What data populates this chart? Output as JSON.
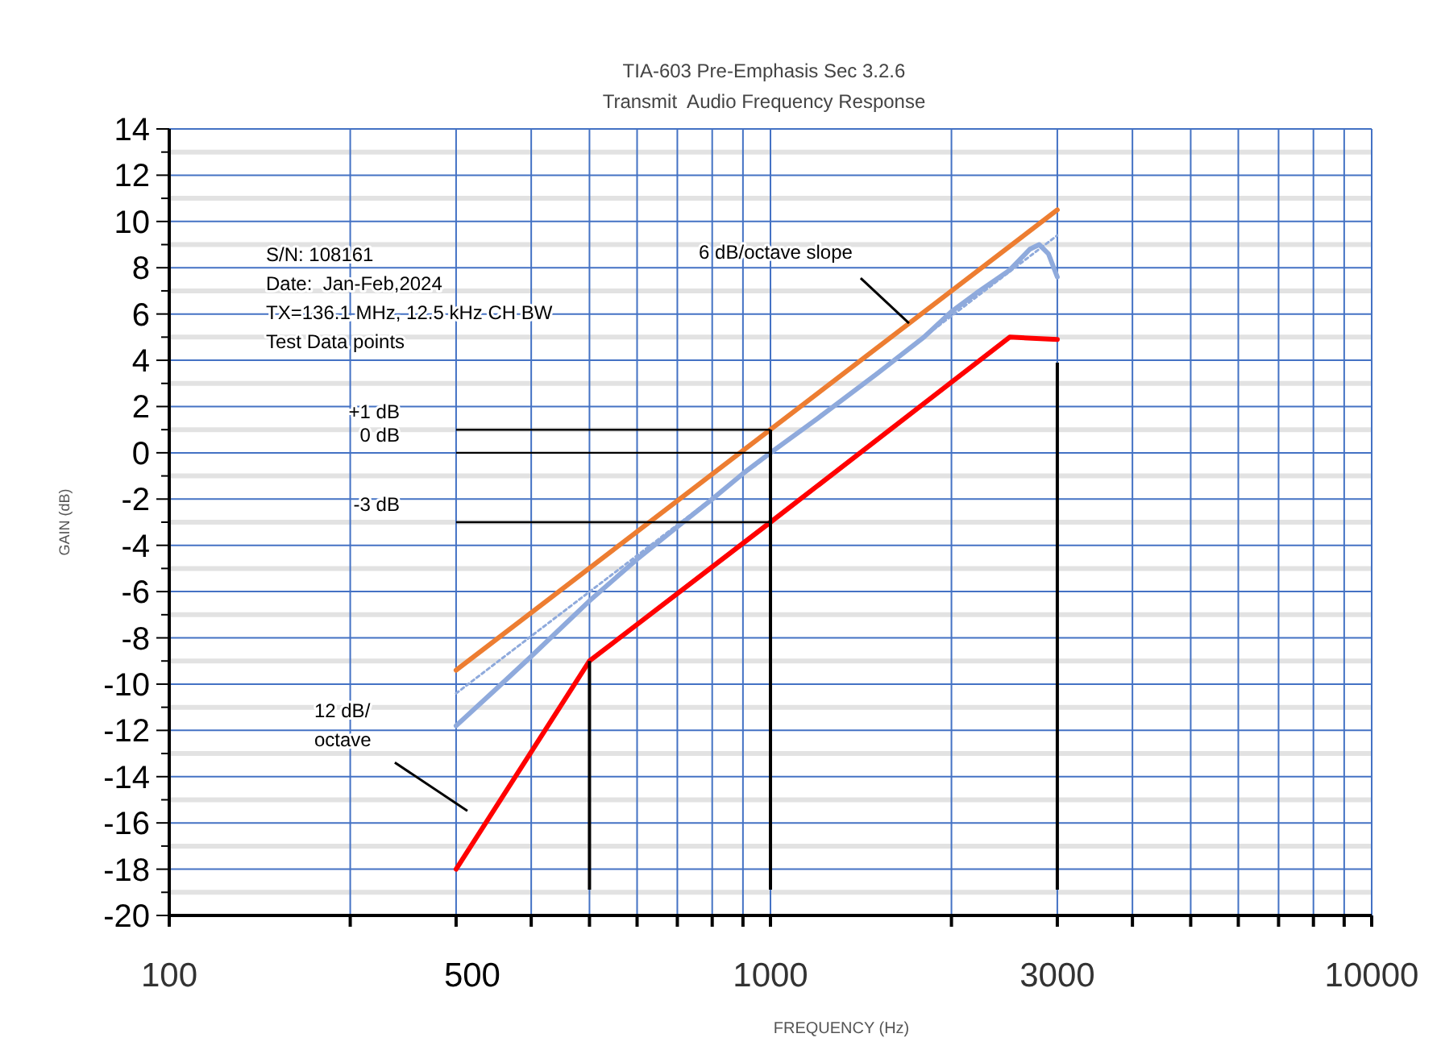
{
  "chart_data": {
    "type": "line",
    "title": "TIA-603 Pre-Emphasis Sec 3.2.6",
    "subtitle": "Transmit  Audio Frequency Response",
    "xlabel": "FREQUENCY (Hz)",
    "ylabel": "GAIN (dB)",
    "log": "x",
    "grid": true,
    "xlim": [
      100,
      10000
    ],
    "xticks": [
      100,
      {
        "value": 200,
        "label": null
      },
      {
        "value": 300,
        "label": null
      },
      {
        "value": 400,
        "label": null
      },
      {
        "value": 500,
        "label": null
      },
      {
        "value": 600,
        "label": null
      },
      {
        "value": 700,
        "label": null
      },
      {
        "value": 800,
        "label": null
      },
      {
        "value": 900,
        "label": null
      },
      1000,
      {
        "value": 2000,
        "label": null
      },
      {
        "value": 3000,
        "label": "3000"
      },
      {
        "value": 4000,
        "label": null
      },
      {
        "value": 5000,
        "label": null
      },
      {
        "value": 6000,
        "label": null
      },
      {
        "value": 7000,
        "label": null
      },
      {
        "value": 8000,
        "label": null
      },
      {
        "value": 9000,
        "label": null
      },
      10000
    ],
    "ylim": [
      -20,
      14
    ],
    "yticks": [
      -20,
      {
        "value": -19,
        "label": null
      },
      -18,
      {
        "value": -17,
        "label": null
      },
      -16,
      {
        "value": -15,
        "label": null
      },
      -14,
      {
        "value": -13,
        "label": null
      },
      -12,
      {
        "value": -11,
        "label": null
      },
      -10,
      {
        "value": -9,
        "label": null
      },
      -8,
      {
        "value": -7,
        "label": null
      },
      -6,
      {
        "value": -5,
        "label": null
      },
      -4,
      {
        "value": -3,
        "label": null
      },
      -2,
      {
        "value": -1,
        "label": null
      },
      0,
      {
        "value": 1,
        "label": null
      },
      2,
      {
        "value": 3,
        "label": null
      },
      4,
      {
        "value": 5,
        "label": null
      },
      6,
      {
        "value": 7,
        "label": null
      },
      8,
      {
        "value": 9,
        "label": null
      },
      10,
      {
        "value": 11,
        "label": null
      },
      12,
      {
        "value": 13,
        "label": null
      },
      14
    ],
    "series": [
      {
        "color": "#ed7d31",
        "line_style": "solid",
        "x": [
          300,
          3000
        ],
        "values": [
          -9.4,
          10.5
        ]
      },
      {
        "color": "#8faadc",
        "line_style": "solid",
        "x": [
          300,
          350,
          400,
          500,
          600,
          700,
          800,
          900,
          1000,
          1200,
          1500,
          1800,
          2000,
          2200,
          2500,
          2700,
          2800,
          2900,
          3000
        ],
        "values": [
          -11.8,
          -10.2,
          -8.8,
          -6.4,
          -4.6,
          -3.2,
          -2,
          -0.9,
          0,
          1.5,
          3.4,
          5,
          6.1,
          6.9,
          7.9,
          8.8,
          9,
          8.6,
          7.6
        ]
      },
      {
        "color": "#8faadc",
        "line_style": "dotted",
        "x": [
          300,
          3000
        ],
        "values": [
          -10.4,
          9.4
        ]
      },
      {
        "color": "#ff0000",
        "line_style": "solid",
        "x": [
          300,
          500,
          1000,
          2500,
          3000
        ],
        "values": [
          -18,
          -9,
          -3,
          5,
          4.9
        ]
      }
    ],
    "ref_lines": [
      {
        "axis": "y",
        "value": 1,
        "label": "+1 dB"
      },
      {
        "axis": "y",
        "value": 0,
        "label": "0 dB"
      },
      {
        "axis": "y",
        "value": -3,
        "label": "-3 dB"
      },
      {
        "axis": "x",
        "value": 500
      },
      {
        "axis": "x",
        "value": 1000
      },
      {
        "axis": "x",
        "value": 3000
      }
    ],
    "annotations": [
      "S/N: 108161",
      "Date:  Jan-Feb,2024",
      "TX=136.1 MHz, 12.5 kHz CH BW",
      "Test Data points",
      {
        "text": "6 dB/octave slope",
        "x": 1700,
        "y": 5.6
      },
      "12 dB/ octave",
      "500"
    ]
  }
}
